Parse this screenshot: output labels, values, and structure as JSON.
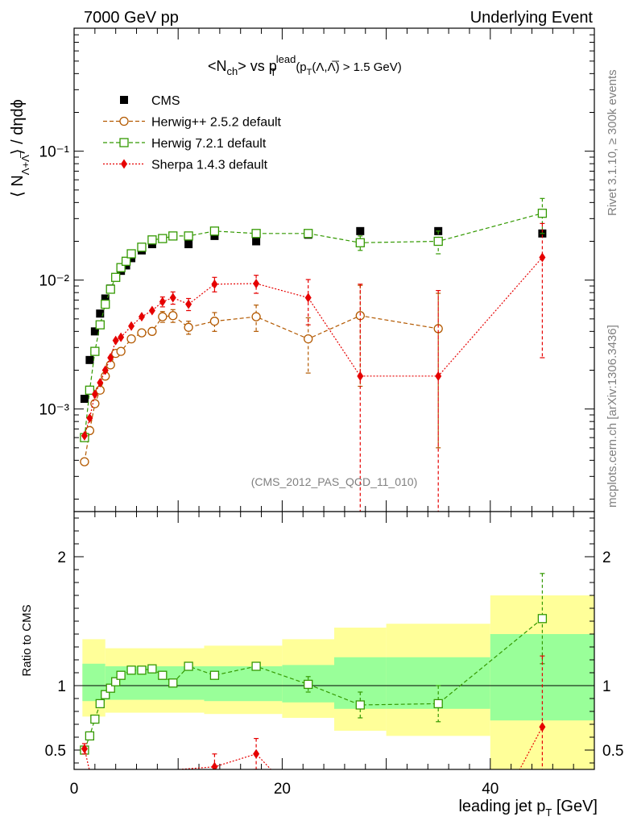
{
  "header": {
    "left": "7000 GeV pp",
    "right": "Underlying Event"
  },
  "side": {
    "rivet": "Rivet 3.1.10, ≥ 300k events",
    "mcplots": "mcplots.cern.ch [arXiv:1306.3436]"
  },
  "chart_data": [
    {
      "type": "scatter",
      "panel": "main",
      "title": "<N_ch> vs p_T^lead (p_T(Λ,Λ̅) > 1.5 GeV)",
      "title_parts": {
        "a": "<N",
        "a_sub": "ch",
        "b": "> vs p",
        "b_sup": "lead",
        "b_sub": "T",
        "c": "(p",
        "c_sub": "T",
        "d": "(Λ,Λ̅) > 1.5 GeV)"
      },
      "ylabel_parts": {
        "a": "⟨ N",
        "sub": "Λ+Λ̅",
        "b": "⟩ / dηdϕ"
      },
      "watermark": "(CMS_2012_PAS_QCD_11_010)",
      "yscale": "log",
      "ylim": [
        0.00016,
        0.9
      ],
      "xlim": [
        0,
        50
      ],
      "y_ticks": [
        {
          "value": 0.001,
          "label": "10⁻³"
        },
        {
          "value": 0.01,
          "label": "10⁻²"
        },
        {
          "value": 0.1,
          "label": "10⁻¹"
        }
      ],
      "legend_position": "top-left",
      "series": [
        {
          "name": "CMS",
          "color": "#000000",
          "marker": "filled-square",
          "x": [
            1.0,
            1.5,
            2.0,
            2.5,
            3.0,
            3.5,
            4.0,
            4.5,
            5.0,
            5.5,
            6.5,
            7.5,
            8.5,
            9.5,
            11.0,
            13.5,
            17.5,
            22.5,
            27.5,
            35.0,
            45.0
          ],
          "y": [
            0.0012,
            0.0024,
            0.004,
            0.0055,
            0.0072,
            0.0086,
            0.0105,
            0.0118,
            0.013,
            0.0148,
            0.017,
            0.019,
            0.021,
            0.022,
            0.019,
            0.022,
            0.02,
            0.0225,
            0.024,
            0.024,
            0.023
          ]
        },
        {
          "name": "Herwig++ 2.5.2 default",
          "color": "#b35900",
          "marker": "open-circle",
          "x": [
            1.0,
            1.5,
            2.0,
            2.5,
            3.0,
            3.5,
            4.0,
            4.5,
            5.5,
            6.5,
            7.5,
            8.5,
            9.5,
            11.0,
            13.5,
            17.5,
            22.5,
            27.5,
            35.0
          ],
          "y": [
            0.00039,
            0.00068,
            0.0011,
            0.0014,
            0.0018,
            0.0022,
            0.0027,
            0.0028,
            0.0035,
            0.0039,
            0.004,
            0.0052,
            0.0053,
            0.0043,
            0.0048,
            0.0052,
            0.0035,
            0.0053,
            0.0042
          ],
          "yerr": [
            0,
            0,
            0,
            0,
            0,
            0,
            0,
            0,
            0,
            0,
            0,
            0.0005,
            0.0006,
            0.0005,
            0.0008,
            0.0012,
            0.0016,
            0.0038,
            0.0037
          ]
        },
        {
          "name": "Herwig 7.2.1 default",
          "color": "#339900",
          "marker": "open-square",
          "x": [
            1.0,
            1.5,
            2.0,
            2.5,
            3.0,
            3.5,
            4.0,
            4.5,
            5.0,
            5.5,
            6.5,
            7.5,
            8.5,
            9.5,
            11.0,
            13.5,
            17.5,
            22.5,
            27.5,
            35.0,
            45.0
          ],
          "y": [
            0.0006,
            0.0014,
            0.0028,
            0.0045,
            0.0065,
            0.0085,
            0.0105,
            0.0125,
            0.014,
            0.016,
            0.018,
            0.0205,
            0.021,
            0.022,
            0.022,
            0.024,
            0.023,
            0.023,
            0.0195,
            0.02,
            0.033
          ],
          "yerr": [
            0,
            0,
            0,
            0,
            0,
            0,
            0,
            0,
            0,
            0,
            0,
            0,
            0,
            0,
            0,
            0,
            0,
            0,
            0.0025,
            0.004,
            0.01
          ]
        },
        {
          "name": "Sherpa 1.4.3 default",
          "color": "#e60000",
          "marker": "filled-diamond",
          "x": [
            1.0,
            1.5,
            2.0,
            2.5,
            3.0,
            3.5,
            4.0,
            4.5,
            5.5,
            6.5,
            7.5,
            8.5,
            9.5,
            11.0,
            13.5,
            17.5,
            22.5,
            27.5,
            35.0,
            45.0
          ],
          "y": [
            0.00062,
            0.00085,
            0.0013,
            0.0016,
            0.002,
            0.0025,
            0.0034,
            0.0036,
            0.0044,
            0.0052,
            0.0058,
            0.0068,
            0.0073,
            0.0065,
            0.0093,
            0.0094,
            0.0073,
            0.0018,
            0.0018,
            0.015
          ],
          "yerr": [
            0,
            0,
            0,
            0,
            0,
            0,
            0,
            0,
            0,
            0,
            0,
            0.0006,
            0.0008,
            0.0007,
            0.0012,
            0.0015,
            0.0028,
            0.0075,
            0.0065,
            0.0125
          ]
        }
      ]
    },
    {
      "type": "scatter",
      "panel": "ratio",
      "ylabel": "Ratio to CMS",
      "xlabel_parts": {
        "a": "leading jet p",
        "sub": "T",
        "b": " [GeV]"
      },
      "xlim": [
        0,
        50
      ],
      "ylim": [
        0.35,
        2.35
      ],
      "x_ticks": [
        0,
        20,
        40
      ],
      "y_ticks": [
        0.5,
        1,
        2
      ],
      "bands": [
        {
          "x0": 0.8,
          "x1": 3.0,
          "g": [
            0.88,
            1.17
          ],
          "yel": [
            0.76,
            1.36
          ]
        },
        {
          "x0": 3.0,
          "x1": 12.5,
          "g": [
            0.89,
            1.15
          ],
          "yel": [
            0.79,
            1.29
          ]
        },
        {
          "x0": 12.5,
          "x1": 20.0,
          "g": [
            0.88,
            1.15
          ],
          "yel": [
            0.78,
            1.31
          ]
        },
        {
          "x0": 20.0,
          "x1": 25.0,
          "g": [
            0.87,
            1.16
          ],
          "yel": [
            0.75,
            1.36
          ]
        },
        {
          "x0": 25.0,
          "x1": 30.0,
          "g": [
            0.82,
            1.22
          ],
          "yel": [
            0.65,
            1.45
          ]
        },
        {
          "x0": 30.0,
          "x1": 40.0,
          "g": [
            0.82,
            1.22
          ],
          "yel": [
            0.61,
            1.48
          ]
        },
        {
          "x0": 40.0,
          "x1": 50.0,
          "g": [
            0.73,
            1.4
          ],
          "yel": [
            0.35,
            1.7
          ]
        }
      ],
      "series": [
        {
          "name": "Herwig 7.2.1 default",
          "color": "#339900",
          "marker": "open-square",
          "x": [
            1.0,
            1.5,
            2.0,
            2.5,
            3.0,
            3.5,
            4.0,
            4.5,
            5.5,
            6.5,
            7.5,
            8.5,
            9.5,
            11.0,
            13.5,
            17.5,
            22.5,
            27.5,
            35.0,
            45.0
          ],
          "y": [
            0.5,
            0.61,
            0.74,
            0.86,
            0.93,
            0.98,
            1.03,
            1.08,
            1.12,
            1.12,
            1.13,
            1.08,
            1.02,
            1.15,
            1.08,
            1.15,
            1.01,
            0.85,
            0.86,
            1.52
          ],
          "yerr": [
            0,
            0,
            0,
            0,
            0,
            0,
            0,
            0,
            0,
            0,
            0,
            0,
            0,
            0,
            0,
            0,
            0.06,
            0.1,
            0.14,
            0.35
          ]
        },
        {
          "name": "Sherpa 1.4.3 default",
          "color": "#e60000",
          "marker": "filled-diamond",
          "x": [
            1.0,
            13.5,
            17.5,
            45.0
          ],
          "y": [
            0.51,
            0.37,
            0.47,
            0.68
          ],
          "yerr": [
            0.04,
            0.1,
            0.12,
            0.55
          ],
          "line_x": [
            1.0,
            1.6,
            13.5,
            17.5,
            19.5
          ],
          "line_y": [
            0.51,
            0.3,
            0.37,
            0.47,
            0.3
          ],
          "line2_x": [
            42.5,
            45.0
          ],
          "line2_y": [
            0.3,
            0.68
          ]
        }
      ]
    }
  ]
}
